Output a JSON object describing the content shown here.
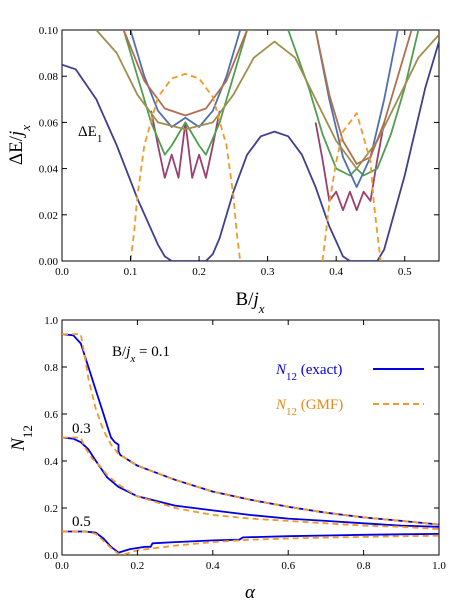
{
  "chart_data": [
    {
      "type": "line",
      "xlabel": "B/jx",
      "ylabel": "ΔE/jx",
      "xlim": [
        0,
        0.55
      ],
      "ylim": [
        0,
        0.1
      ],
      "xticks": [
        "0.0",
        "0.1",
        "0.2",
        "0.3",
        "0.4",
        "0.5"
      ],
      "yticks": [
        "0.00",
        "0.02",
        "0.04",
        "0.06",
        "0.08",
        "0.10"
      ],
      "annotations": [
        {
          "text": "ΔE1",
          "x": 0.05,
          "y": 0.055
        }
      ],
      "series": [
        {
          "color": "#3f3f8f",
          "style": "solid",
          "x": [
            0,
            0.02,
            0.05,
            0.08,
            0.11,
            0.14,
            0.15,
            0.16,
            0.17,
            0.19,
            0.21,
            0.22,
            0.23,
            0.25,
            0.27,
            0.29,
            0.31,
            0.33,
            0.35,
            0.37,
            0.39,
            0.41,
            0.42,
            0.43,
            0.45,
            0.46,
            0.47,
            0.5,
            0.53,
            0.55
          ],
          "y": [
            0.085,
            0.083,
            0.07,
            0.05,
            0.027,
            0.007,
            0.002,
            0,
            0,
            0,
            0,
            0.003,
            0.01,
            0.03,
            0.046,
            0.054,
            0.056,
            0.054,
            0.046,
            0.032,
            0.015,
            0.002,
            0,
            0,
            0,
            0,
            0.005,
            0.037,
            0.075,
            0.095
          ]
        },
        {
          "color": "#9b3f6e",
          "style": "solid",
          "x": [
            0.13,
            0.14,
            0.15,
            0.16,
            0.17,
            0.18,
            0.19,
            0.2,
            0.21,
            0.22,
            0.23
          ],
          "y": [
            0.065,
            0.05,
            0.036,
            0.046,
            0.036,
            0.06,
            0.036,
            0.046,
            0.036,
            0.05,
            0.065
          ],
          "x2": [
            0.37,
            0.38,
            0.39,
            0.4,
            0.41,
            0.42,
            0.43,
            0.44,
            0.45,
            0.46,
            0.47
          ],
          "y2": [
            0.06,
            0.044,
            0.026,
            0.03,
            0.022,
            0.03,
            0.022,
            0.03,
            0.026,
            0.044,
            0.06
          ]
        },
        {
          "color": "#4f9f4f",
          "style": "solid",
          "x": [
            0.09,
            0.11,
            0.13,
            0.15,
            0.16,
            0.18,
            0.2,
            0.21,
            0.23,
            0.25,
            0.27,
            0.28
          ],
          "y": [
            0.1,
            0.08,
            0.06,
            0.046,
            0.05,
            0.06,
            0.05,
            0.046,
            0.06,
            0.08,
            0.1,
            0.1
          ],
          "x2": [
            0.33,
            0.36,
            0.38,
            0.4,
            0.42,
            0.43,
            0.44,
            0.46,
            0.48,
            0.5,
            0.52
          ],
          "y2": [
            0.1,
            0.075,
            0.055,
            0.04,
            0.037,
            0.04,
            0.037,
            0.04,
            0.055,
            0.075,
            0.1
          ]
        },
        {
          "color": "#4f6faf",
          "style": "solid",
          "x": [
            0.1,
            0.12,
            0.14,
            0.16,
            0.18,
            0.2,
            0.22,
            0.24,
            0.26
          ],
          "y": [
            0.1,
            0.08,
            0.065,
            0.058,
            0.062,
            0.058,
            0.065,
            0.08,
            0.1
          ],
          "x2": [
            0.37,
            0.39,
            0.41,
            0.43,
            0.45,
            0.47,
            0.49
          ],
          "y2": [
            0.1,
            0.07,
            0.045,
            0.032,
            0.045,
            0.07,
            0.1
          ]
        },
        {
          "color": "#9f8f4f",
          "style": "solid",
          "x": [
            0.05,
            0.08,
            0.11,
            0.14,
            0.18,
            0.22,
            0.25,
            0.28,
            0.31,
            0.34,
            0.37,
            0.4,
            0.43,
            0.46,
            0.49,
            0.52,
            0.55
          ],
          "y": [
            0.1,
            0.09,
            0.072,
            0.06,
            0.057,
            0.06,
            0.072,
            0.088,
            0.095,
            0.088,
            0.07,
            0.052,
            0.04,
            0.052,
            0.07,
            0.088,
            0.098
          ]
        },
        {
          "color": "#b06f4f",
          "style": "solid",
          "x": [
            0.09,
            0.12,
            0.15,
            0.18,
            0.21,
            0.24,
            0.27
          ],
          "y": [
            0.1,
            0.078,
            0.066,
            0.063,
            0.066,
            0.078,
            0.1
          ],
          "x2": [
            0.37,
            0.39,
            0.41,
            0.43,
            0.45,
            0.47,
            0.49,
            0.51
          ],
          "y2": [
            0.1,
            0.072,
            0.052,
            0.042,
            0.045,
            0.06,
            0.08,
            0.1
          ]
        },
        {
          "color": "#f29a28",
          "style": "dashed",
          "x": [
            0.1,
            0.105,
            0.11,
            0.12,
            0.14,
            0.16,
            0.18,
            0.2,
            0.22,
            0.24,
            0.25,
            0.255,
            0.26
          ],
          "y": [
            0,
            0.012,
            0.028,
            0.05,
            0.071,
            0.079,
            0.081,
            0.079,
            0.071,
            0.05,
            0.028,
            0.012,
            0
          ],
          "x2": [
            0.38,
            0.385,
            0.39,
            0.4,
            0.41,
            0.43,
            0.45,
            0.455,
            0.46,
            0.465
          ],
          "y2": [
            0,
            0.012,
            0.025,
            0.043,
            0.056,
            0.064,
            0.043,
            0.025,
            0.012,
            0
          ]
        }
      ]
    },
    {
      "type": "line",
      "xlabel": "α",
      "ylabel": "N12",
      "xlim": [
        0,
        1
      ],
      "ylim": [
        0,
        1
      ],
      "xticks": [
        "0.0",
        "0.2",
        "0.4",
        "0.6",
        "0.8",
        "1.0"
      ],
      "yticks": [
        "0.0",
        "0.2",
        "0.4",
        "0.6",
        "0.8",
        "1.0"
      ],
      "legend_position": "top-right",
      "legend": [
        {
          "name": "N12 (exact)",
          "color": "#0000e0",
          "style": "solid"
        },
        {
          "name": "N12 (GMF)",
          "color": "#f29a28",
          "style": "dashed"
        }
      ],
      "annotations": [
        {
          "text": "B/jx = 0.1",
          "x": 0.13,
          "y": 0.86
        },
        {
          "text": "0.3",
          "x": 0.03,
          "y": 0.55
        },
        {
          "text": "0.5",
          "x": 0.03,
          "y": 0.14
        }
      ],
      "series": [
        {
          "label": "0.1",
          "kind": "exact",
          "color": "#0000e0",
          "style": "solid",
          "x": [
            0,
            0.03,
            0.05,
            0.07,
            0.09,
            0.11,
            0.12,
            0.13,
            0.14,
            0.15,
            0.15,
            0.155,
            0.16,
            0.2,
            0.3,
            0.4,
            0.5,
            0.6,
            0.7,
            0.8,
            0.9,
            1.0
          ],
          "y": [
            0.94,
            0.935,
            0.9,
            0.8,
            0.7,
            0.6,
            0.55,
            0.5,
            0.48,
            0.47,
            0.44,
            0.425,
            0.42,
            0.38,
            0.32,
            0.27,
            0.235,
            0.205,
            0.18,
            0.16,
            0.145,
            0.13
          ]
        },
        {
          "label": "0.1",
          "kind": "gmf",
          "color": "#f29a28",
          "style": "dashed",
          "x": [
            0,
            0.05,
            0.06,
            0.07,
            0.09,
            0.11,
            0.13,
            0.15,
            0.17,
            0.2,
            0.3,
            0.4,
            0.5,
            0.6,
            0.7,
            0.8,
            0.9,
            1.0
          ],
          "y": [
            0.94,
            0.94,
            0.85,
            0.75,
            0.62,
            0.53,
            0.47,
            0.43,
            0.41,
            0.38,
            0.32,
            0.27,
            0.235,
            0.205,
            0.18,
            0.16,
            0.145,
            0.13
          ]
        },
        {
          "label": "0.3",
          "kind": "exact",
          "color": "#0000e0",
          "style": "solid",
          "x": [
            0,
            0.03,
            0.05,
            0.07,
            0.09,
            0.12,
            0.15,
            0.2,
            0.3,
            0.4,
            0.5,
            0.6,
            0.7,
            0.8,
            0.9,
            1.0
          ],
          "y": [
            0.5,
            0.495,
            0.48,
            0.45,
            0.4,
            0.33,
            0.29,
            0.25,
            0.21,
            0.19,
            0.17,
            0.155,
            0.145,
            0.135,
            0.125,
            0.12
          ]
        },
        {
          "label": "0.3",
          "kind": "gmf",
          "color": "#f29a28",
          "style": "dashed",
          "x": [
            0,
            0.05,
            0.06,
            0.08,
            0.1,
            0.12,
            0.15,
            0.2,
            0.3,
            0.4,
            0.5,
            0.6,
            0.7,
            0.8,
            0.9,
            1.0
          ],
          "y": [
            0.5,
            0.5,
            0.46,
            0.41,
            0.38,
            0.34,
            0.3,
            0.25,
            0.2,
            0.17,
            0.155,
            0.145,
            0.135,
            0.125,
            0.12,
            0.11
          ]
        },
        {
          "label": "0.5",
          "kind": "exact",
          "color": "#0000e0",
          "style": "solid",
          "x": [
            0,
            0.06,
            0.09,
            0.11,
            0.13,
            0.15,
            0.16,
            0.18,
            0.2,
            0.22,
            0.235,
            0.24,
            0.3,
            0.4,
            0.47,
            0.48,
            0.6,
            0.7,
            0.8,
            0.9,
            1.0
          ],
          "y": [
            0.1,
            0.1,
            0.095,
            0.07,
            0.035,
            0.01,
            0.015,
            0.025,
            0.03,
            0.035,
            0.035,
            0.05,
            0.055,
            0.062,
            0.065,
            0.075,
            0.08,
            0.083,
            0.086,
            0.088,
            0.09
          ]
        },
        {
          "label": "0.5",
          "kind": "gmf",
          "color": "#f29a28",
          "style": "dashed",
          "x": [
            0,
            0.06,
            0.09,
            0.11,
            0.13,
            0.15,
            0.16,
            0.2,
            0.3,
            0.4,
            0.5,
            0.6,
            0.7,
            0.8,
            0.9,
            1.0
          ],
          "y": [
            0.1,
            0.1,
            0.09,
            0.06,
            0.03,
            0.005,
            0,
            0.02,
            0.04,
            0.055,
            0.065,
            0.07,
            0.074,
            0.077,
            0.08,
            0.082
          ]
        }
      ]
    }
  ]
}
